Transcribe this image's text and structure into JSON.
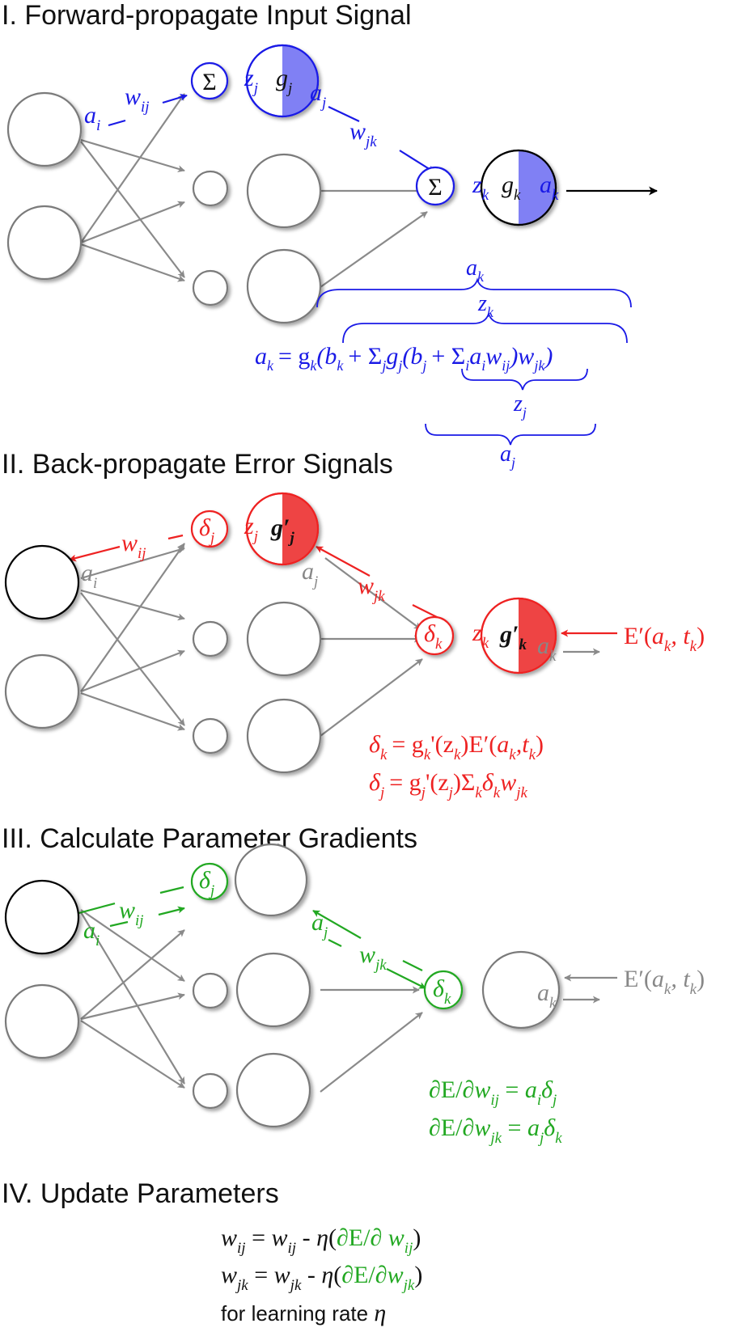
{
  "headings": {
    "forward": "I. Forward-propagate Input Signal",
    "backward": "II. Back-propagate Error Signals",
    "gradients": "III. Calculate Parameter Gradients",
    "update": "IV. Update Parameters"
  },
  "symbols": {
    "sum": "Σ",
    "delta": "δ",
    "z": "z",
    "g": "g",
    "g_prime": "g′",
    "a": "a",
    "w": "w",
    "sub_i": "i",
    "sub_j": "j",
    "sub_k": "k",
    "sub_ij": "ij",
    "sub_jk": "jk"
  },
  "forward": {
    "brace_ak": "a",
    "brace_zk": "z",
    "brace_zj": "z",
    "brace_aj": "a",
    "equation": {
      "lhs": "a",
      "equals_g": "= g",
      "open_b": "(b",
      "plus_sum": "+ Σ",
      "g_j": "g",
      "open_bj": "(b",
      "plus_sum2": "+ Σ",
      "ai": "a",
      "w": "w",
      "close1": ")w",
      "close2": ")"
    }
  },
  "backward": {
    "error_label": "E′(",
    "error_args": "a",
    "error_sep": ",  t",
    "error_close": ")",
    "eq1": {
      "delta": "δ",
      "rhs_a": "= g",
      "rhs_b": "'(z",
      "rhs_c": ")E′(",
      "a": "a",
      "sep": ",t",
      "close": ")"
    },
    "eq2": {
      "delta": "δ",
      "rhs_a": "= g",
      "rhs_b": "'(z",
      "rhs_c": ")Σ",
      "delta2": "δ",
      "w": "w"
    }
  },
  "gradients": {
    "eq1": {
      "lhs": "∂E/∂",
      "w": "w",
      "eq": " = ",
      "a": "a",
      "delta": "δ"
    },
    "eq2": {
      "lhs": "∂E/∂",
      "w": "w",
      "eq": " = ",
      "a": "a",
      "delta": "δ"
    }
  },
  "update": {
    "rule_ij": {
      "w": "w",
      "eq": " = ",
      "minus": " - ",
      "eta": "η",
      "open": "(",
      "grad": "∂E/∂ ",
      "close": ")"
    },
    "rule_jk": {
      "w": "w",
      "eq": " = ",
      "minus": " - ",
      "eta": "η",
      "open": "(",
      "grad": "∂E/∂",
      "close": ")"
    },
    "note": "for learning rate ",
    "note_eta": "η"
  },
  "colors": {
    "forward": "#1a1ae6",
    "forward_fill": "#8080f4",
    "backward": "#ee2222",
    "backward_fill": "#ee4444",
    "gradient": "#22a822",
    "inactive": "#888888",
    "node_stroke": "#7a7a7a",
    "active_stroke": "#000000"
  }
}
